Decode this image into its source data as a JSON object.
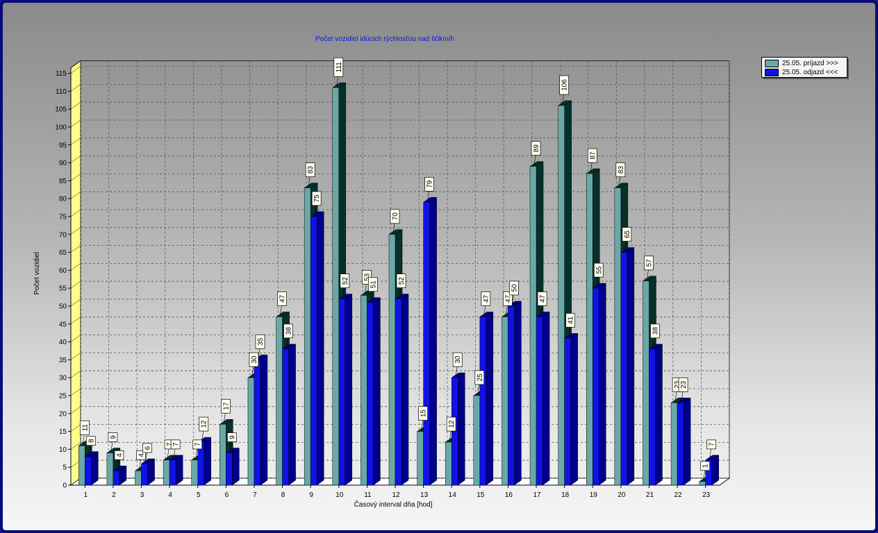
{
  "colors": {
    "prijazd_face": "#6aa8a8",
    "prijazd_side": "#06302a",
    "odjazd_face": "#1212e6",
    "odjazd_side": "#00008a",
    "wall": "#ffff88",
    "floor": "#ffffff",
    "title": "#1414d8"
  },
  "chart_data": {
    "type": "bar",
    "title": "Počet vozidiel idúcich rýchlosťou nad 60km/h",
    "xlabel": "Časový interval dňa [hod]",
    "ylabel": "Počet vozidiel",
    "ylim": [
      0,
      115
    ],
    "ytick_step": 5,
    "grid": true,
    "legend_position": "top-right",
    "categories": [
      "1",
      "2",
      "3",
      "4",
      "5",
      "6",
      "7",
      "8",
      "9",
      "10",
      "11",
      "12",
      "13",
      "14",
      "15",
      "16",
      "17",
      "18",
      "19",
      "20",
      "21",
      "22",
      "23"
    ],
    "series": [
      {
        "name": "25.05.  príjazd >>>",
        "values": [
          11,
          9,
          4,
          7,
          7,
          17,
          30,
          47,
          83,
          111,
          53,
          70,
          15,
          12,
          25,
          47,
          89,
          106,
          87,
          83,
          57,
          23,
          1
        ]
      },
      {
        "name": "25.05.  odjazd <<<",
        "values": [
          8,
          4,
          6,
          7,
          12,
          9,
          35,
          38,
          75,
          52,
          51,
          52,
          79,
          30,
          47,
          50,
          47,
          41,
          55,
          65,
          38,
          23,
          7
        ]
      }
    ],
    "data_labels": [
      [
        "11",
        "9",
        "4",
        "7",
        "7",
        "17",
        "30",
        "47",
        "83",
        "111",
        "53",
        "70",
        "15",
        "12",
        "25",
        "47",
        "89",
        "106",
        "87",
        "83",
        "57",
        "23",
        "1"
      ],
      [
        "8",
        "4",
        "6",
        "7",
        "12",
        "9",
        "35",
        "38",
        "75",
        "52",
        "51",
        "52",
        "79",
        "30",
        "47",
        "50",
        "47",
        "41",
        "55",
        "65",
        "38",
        "23",
        "7"
      ]
    ]
  }
}
